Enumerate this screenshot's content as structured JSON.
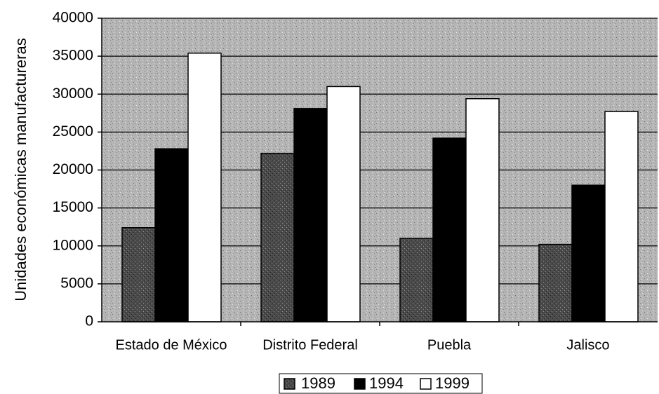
{
  "chart_data": {
    "type": "bar",
    "title": "",
    "xlabel": "",
    "ylabel": "Unidades económicas manufactureras",
    "ylim": [
      0,
      40000
    ],
    "yticks": [
      0,
      5000,
      10000,
      15000,
      20000,
      25000,
      30000,
      35000,
      40000
    ],
    "grid": true,
    "legend_position": "bottom-center",
    "categories": [
      "Estado de México",
      "Distrito Federal",
      "Puebla",
      "Jalisco"
    ],
    "series": [
      {
        "name": "1989",
        "values": [
          12400,
          22200,
          11000,
          10200
        ],
        "color": "#555555"
      },
      {
        "name": "1994",
        "values": [
          22800,
          28100,
          24200,
          18000
        ],
        "color": "#000000"
      },
      {
        "name": "1999",
        "values": [
          35400,
          31000,
          29400,
          27700
        ],
        "color": "#ffffff"
      }
    ]
  }
}
